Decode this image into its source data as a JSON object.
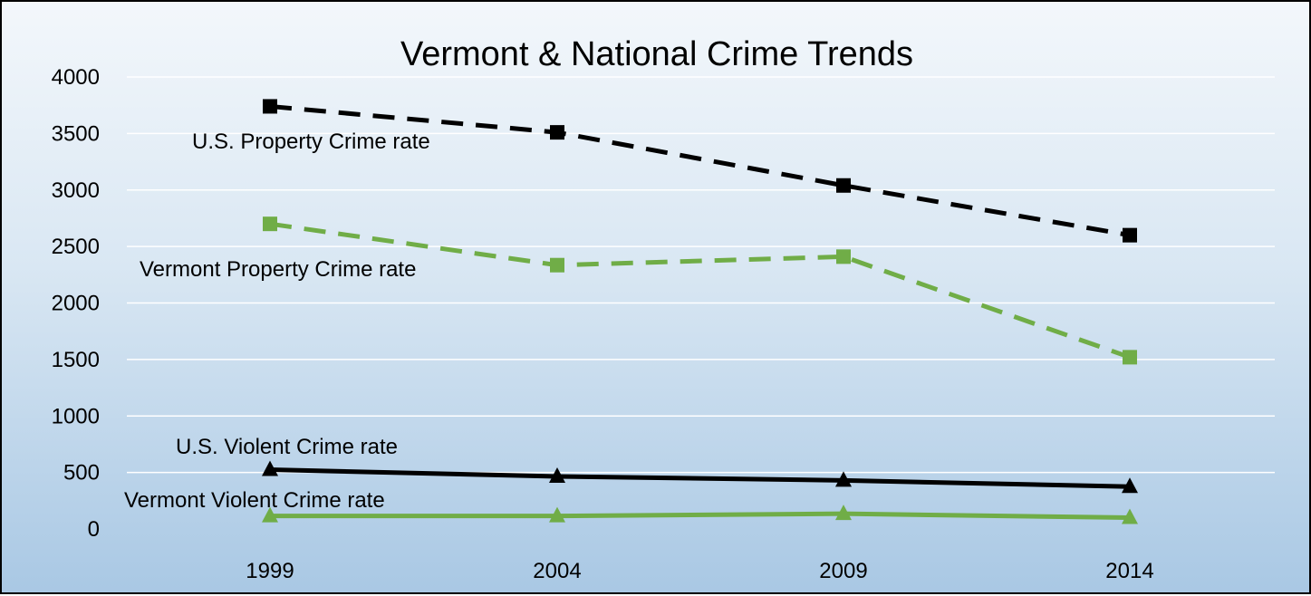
{
  "chart_data": {
    "type": "line",
    "title": "Vermont & National Crime Trends",
    "xlabel": "",
    "ylabel": "",
    "categories": [
      "1999",
      "2004",
      "2009",
      "2014"
    ],
    "ylim": [
      0,
      4000
    ],
    "yticks": [
      "0",
      "500",
      "1000",
      "1500",
      "2000",
      "2500",
      "3000",
      "3500",
      "4000"
    ],
    "grid": true,
    "legend": "none (series labeled directly on chart)",
    "series": [
      {
        "name": "U.S. Property Crime rate",
        "values": [
          3740,
          3510,
          3040,
          2600
        ],
        "color": "#000000",
        "line_style": "dashed",
        "marker": "square"
      },
      {
        "name": "Vermont Property Crime rate",
        "values": [
          2700,
          2335,
          2410,
          1520
        ],
        "color": "#70ad47",
        "line_style": "dashed",
        "marker": "square"
      },
      {
        "name": "U.S. Violent Crime rate",
        "values": [
          525,
          465,
          430,
          375
        ],
        "color": "#000000",
        "line_style": "solid",
        "marker": "triangle"
      },
      {
        "name": "Vermont Violent Crime rate",
        "values": [
          115,
          115,
          135,
          100
        ],
        "color": "#70ad47",
        "line_style": "solid",
        "marker": "triangle"
      }
    ]
  }
}
